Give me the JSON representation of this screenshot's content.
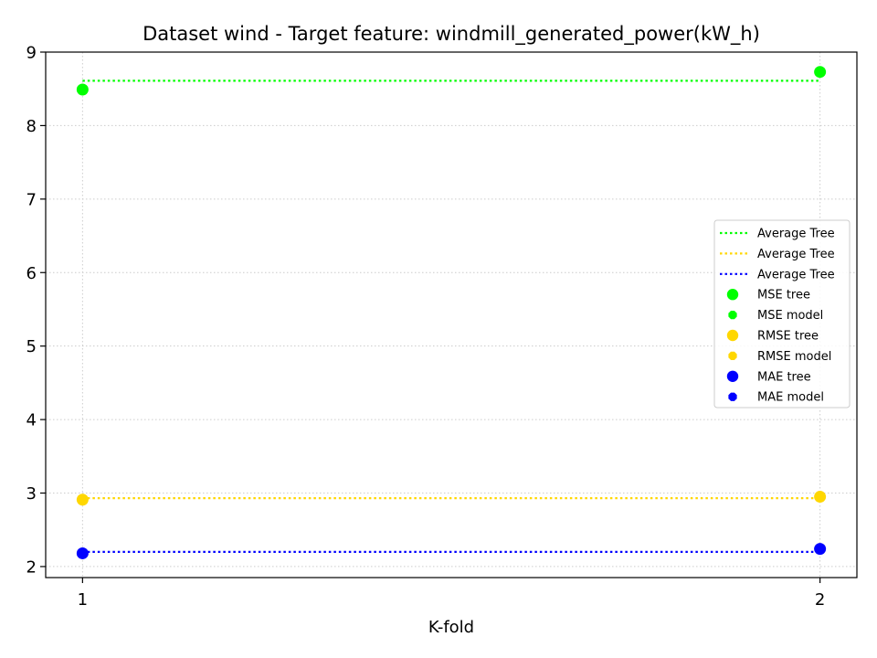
{
  "chart_data": {
    "type": "scatter",
    "title": "Dataset wind - Target feature: windmill_generated_power(kW_h)",
    "xlabel": "K-fold",
    "ylabel": "",
    "x": [
      1,
      2
    ],
    "xlim": [
      0.95,
      2.05
    ],
    "ylim": [
      1.85,
      9.0
    ],
    "xticks": [
      1,
      2
    ],
    "yticks": [
      2,
      3,
      4,
      5,
      6,
      7,
      8,
      9
    ],
    "grid": true,
    "grid_style": "dotted",
    "legend_position": "center-right",
    "lines": [
      {
        "name": "Average Tree",
        "y": 8.61,
        "color": "#00ff00",
        "style": "dotted"
      },
      {
        "name": "Average Tree",
        "y": 2.93,
        "color": "#ffd700",
        "style": "dotted"
      },
      {
        "name": "Average Tree",
        "y": 2.2,
        "color": "#0000ff",
        "style": "dotted"
      }
    ],
    "series": [
      {
        "name": "MSE tree",
        "marker": "circle",
        "color": "#00ff00",
        "values": [
          8.49,
          8.73
        ]
      },
      {
        "name": "MSE model",
        "marker": "octagon",
        "color": "#00ff00",
        "values": [
          8.49,
          8.73
        ]
      },
      {
        "name": "RMSE tree",
        "marker": "circle",
        "color": "#ffd700",
        "values": [
          2.91,
          2.95
        ]
      },
      {
        "name": "RMSE model",
        "marker": "octagon",
        "color": "#ffd700",
        "values": [
          2.91,
          2.95
        ]
      },
      {
        "name": "MAE tree",
        "marker": "circle",
        "color": "#0000ff",
        "values": [
          2.18,
          2.24
        ]
      },
      {
        "name": "MAE model",
        "marker": "octagon",
        "color": "#0000ff",
        "values": [
          2.18,
          2.24
        ]
      }
    ]
  }
}
